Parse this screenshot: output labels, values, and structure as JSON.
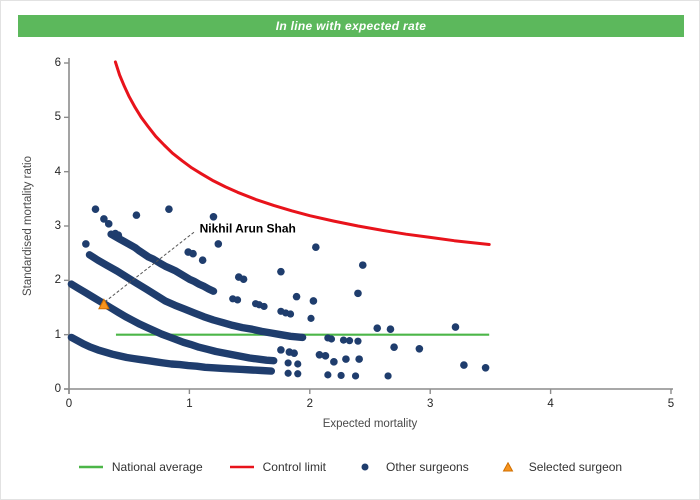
{
  "header": {
    "title": "In line with expected rate",
    "bg": "#5cb85c",
    "text_color": "#ffffff"
  },
  "colors": {
    "navy": "#1f3d6d",
    "green_line": "#4cb648",
    "red_line": "#e8131b",
    "orange_fill": "#f7941e",
    "orange_stroke": "#d06f00",
    "axis": "#8c8c8c",
    "leader": "#555555"
  },
  "chart_data": {
    "type": "scatter",
    "title": "In line with expected rate",
    "xlabel": "Expected mortality",
    "ylabel": "Standardised mortality ratio",
    "xlim": [
      0,
      5
    ],
    "ylim": [
      0,
      6
    ],
    "x_ticks": [
      0,
      1,
      2,
      3,
      4,
      5
    ],
    "y_ticks": [
      0,
      1,
      2,
      3,
      4,
      5,
      6
    ],
    "grid": false,
    "legend_position": "bottom",
    "national_average": {
      "y": 1,
      "x_start": 0.39,
      "x_end": 3.49
    },
    "control_limit": {
      "formula": "SMR = 1 + 3.1/sqrt(E)",
      "points": [
        [
          0.385,
          6.02
        ],
        [
          0.42,
          5.78
        ],
        [
          0.46,
          5.57
        ],
        [
          0.5,
          5.38
        ],
        [
          0.55,
          5.18
        ],
        [
          0.6,
          5.0
        ],
        [
          0.66,
          4.82
        ],
        [
          0.72,
          4.65
        ],
        [
          0.79,
          4.49
        ],
        [
          0.86,
          4.34
        ],
        [
          0.94,
          4.2
        ],
        [
          1.02,
          4.07
        ],
        [
          1.1,
          3.96
        ],
        [
          1.2,
          3.83
        ],
        [
          1.3,
          3.72
        ],
        [
          1.4,
          3.62
        ],
        [
          1.55,
          3.49
        ],
        [
          1.7,
          3.38
        ],
        [
          1.85,
          3.28
        ],
        [
          2.0,
          3.19
        ],
        [
          2.2,
          3.09
        ],
        [
          2.4,
          3.0
        ],
        [
          2.6,
          2.92
        ],
        [
          2.8,
          2.85
        ],
        [
          3.0,
          2.79
        ],
        [
          3.2,
          2.73
        ],
        [
          3.49,
          2.66
        ]
      ]
    },
    "surgeon_arcs": [
      {
        "dense": [
          [
            0.35,
            2.85
          ],
          [
            0.42,
            2.76
          ],
          [
            0.51,
            2.65
          ],
          [
            0.55,
            2.6
          ],
          [
            0.58,
            2.55
          ],
          [
            0.66,
            2.43
          ],
          [
            0.7,
            2.39
          ],
          [
            0.76,
            2.31
          ],
          [
            0.8,
            2.26
          ],
          [
            0.84,
            2.22
          ],
          [
            0.88,
            2.18
          ],
          [
            1.0,
            2.02
          ],
          [
            1.04,
            1.98
          ],
          [
            1.08,
            1.93
          ],
          [
            1.12,
            1.89
          ],
          [
            1.16,
            1.84
          ],
          [
            1.2,
            1.8
          ]
        ],
        "tail": [
          [
            1.36,
            1.66
          ],
          [
            1.4,
            1.64
          ],
          [
            1.55,
            1.57
          ],
          [
            1.58,
            1.55
          ],
          [
            1.62,
            1.52
          ],
          [
            1.76,
            1.43
          ],
          [
            1.8,
            1.4
          ],
          [
            1.84,
            1.38
          ],
          [
            2.01,
            1.3
          ]
        ]
      },
      {
        "dense": [
          [
            0.17,
            2.47
          ],
          [
            0.24,
            2.37
          ],
          [
            0.32,
            2.27
          ],
          [
            0.4,
            2.17
          ],
          [
            0.48,
            2.06
          ],
          [
            0.56,
            1.95
          ],
          [
            0.64,
            1.84
          ],
          [
            0.72,
            1.73
          ],
          [
            0.8,
            1.62
          ],
          [
            0.88,
            1.54
          ],
          [
            0.96,
            1.47
          ],
          [
            1.04,
            1.4
          ],
          [
            1.12,
            1.33
          ],
          [
            1.2,
            1.27
          ],
          [
            1.28,
            1.22
          ],
          [
            1.36,
            1.17
          ],
          [
            1.44,
            1.13
          ],
          [
            1.52,
            1.1
          ],
          [
            1.6,
            1.06
          ],
          [
            1.68,
            1.03
          ],
          [
            1.76,
            1.0
          ],
          [
            1.84,
            0.97
          ],
          [
            1.94,
            0.95
          ]
        ],
        "tail": [
          [
            2.15,
            0.94
          ],
          [
            2.18,
            0.92
          ],
          [
            2.28,
            0.9
          ],
          [
            2.33,
            0.89
          ],
          [
            2.4,
            0.88
          ]
        ]
      },
      {
        "dense": [
          [
            0.02,
            1.93
          ],
          [
            0.08,
            1.85
          ],
          [
            0.14,
            1.77
          ],
          [
            0.2,
            1.69
          ],
          [
            0.26,
            1.61
          ],
          [
            0.29,
            1.57
          ],
          [
            0.35,
            1.49
          ],
          [
            0.41,
            1.41
          ],
          [
            0.47,
            1.33
          ],
          [
            0.53,
            1.26
          ],
          [
            0.59,
            1.19
          ],
          [
            0.65,
            1.13
          ],
          [
            0.71,
            1.07
          ],
          [
            0.77,
            1.01
          ],
          [
            0.83,
            0.96
          ],
          [
            0.89,
            0.91
          ],
          [
            0.95,
            0.86
          ],
          [
            1.01,
            0.82
          ],
          [
            1.08,
            0.77
          ],
          [
            1.15,
            0.73
          ],
          [
            1.22,
            0.69
          ],
          [
            1.29,
            0.66
          ],
          [
            1.36,
            0.63
          ],
          [
            1.43,
            0.6
          ],
          [
            1.5,
            0.57
          ],
          [
            1.57,
            0.55
          ],
          [
            1.64,
            0.53
          ],
          [
            1.7,
            0.52
          ]
        ],
        "tail": [
          [
            1.82,
            0.48
          ],
          [
            1.9,
            0.46
          ]
        ]
      },
      {
        "dense": [
          [
            0.02,
            0.95
          ],
          [
            0.07,
            0.89
          ],
          [
            0.12,
            0.83
          ],
          [
            0.18,
            0.77
          ],
          [
            0.24,
            0.72
          ],
          [
            0.3,
            0.68
          ],
          [
            0.36,
            0.64
          ],
          [
            0.42,
            0.61
          ],
          [
            0.48,
            0.58
          ],
          [
            0.54,
            0.56
          ],
          [
            0.6,
            0.54
          ],
          [
            0.66,
            0.52
          ],
          [
            0.72,
            0.5
          ],
          [
            0.78,
            0.48
          ],
          [
            0.85,
            0.46
          ],
          [
            0.92,
            0.45
          ],
          [
            0.99,
            0.43
          ],
          [
            1.06,
            0.42
          ],
          [
            1.13,
            0.4
          ],
          [
            1.2,
            0.39
          ],
          [
            1.28,
            0.38
          ],
          [
            1.36,
            0.37
          ],
          [
            1.44,
            0.36
          ],
          [
            1.52,
            0.35
          ],
          [
            1.6,
            0.34
          ],
          [
            1.68,
            0.33
          ]
        ],
        "tail": [
          [
            1.82,
            0.29
          ],
          [
            1.9,
            0.28
          ],
          [
            2.15,
            0.26
          ],
          [
            2.26,
            0.25
          ],
          [
            2.38,
            0.24
          ],
          [
            2.65,
            0.24
          ]
        ]
      }
    ],
    "scatter_points": [
      [
        0.14,
        2.67
      ],
      [
        0.22,
        3.31
      ],
      [
        0.29,
        3.13
      ],
      [
        0.33,
        3.04
      ],
      [
        0.385,
        2.86
      ],
      [
        0.41,
        2.83
      ],
      [
        0.56,
        3.2
      ],
      [
        0.83,
        3.31
      ],
      [
        1.2,
        3.17
      ],
      [
        1.24,
        2.67
      ],
      [
        0.99,
        2.52
      ],
      [
        1.03,
        2.49
      ],
      [
        1.11,
        2.37
      ],
      [
        1.41,
        2.06
      ],
      [
        1.45,
        2.02
      ],
      [
        1.76,
        2.16
      ],
      [
        2.05,
        2.61
      ],
      [
        2.44,
        2.28
      ],
      [
        2.4,
        1.76
      ],
      [
        1.89,
        1.7
      ],
      [
        2.03,
        1.62
      ],
      [
        1.76,
        0.72
      ],
      [
        1.83,
        0.68
      ],
      [
        1.87,
        0.66
      ],
      [
        2.08,
        0.63
      ],
      [
        2.13,
        0.61
      ],
      [
        2.2,
        0.5
      ],
      [
        2.3,
        0.55
      ],
      [
        2.41,
        0.55
      ],
      [
        2.56,
        1.12
      ],
      [
        2.67,
        1.1
      ],
      [
        3.21,
        1.14
      ],
      [
        2.7,
        0.77
      ],
      [
        2.91,
        0.74
      ],
      [
        3.28,
        0.44
      ],
      [
        3.46,
        0.39
      ]
    ],
    "selected_surgeon": {
      "label": "Nikhil Arun Shah",
      "point": [
        0.29,
        1.55
      ],
      "label_pos": [
        1.06,
        2.95
      ]
    }
  },
  "legend": {
    "items": [
      {
        "label": "National average",
        "marker": "line",
        "color": "#4cb648"
      },
      {
        "label": "Control limit",
        "marker": "line",
        "color": "#e8131b"
      },
      {
        "label": "Other surgeons",
        "marker": "dot",
        "color": "#1f3d6d"
      },
      {
        "label": "Selected surgeon",
        "marker": "triangle",
        "color": "#f7941e"
      }
    ]
  }
}
